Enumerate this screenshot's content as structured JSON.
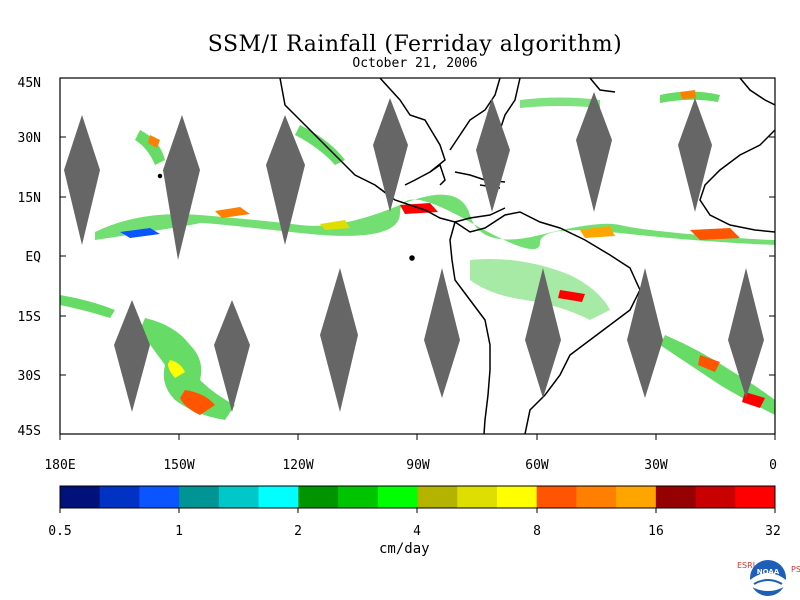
{
  "title": "SSM/I Rainfall (Ferriday algorithm)",
  "subtitle": "October 21, 2006",
  "map": {
    "lat_labels": [
      "45N",
      "30N",
      "15N",
      "EQ",
      "15S",
      "30S",
      "45S"
    ],
    "lon_labels": [
      "180E",
      "150W",
      "120W",
      "90W",
      "60W",
      "30W",
      "0"
    ],
    "lon_range": [
      -180,
      0
    ],
    "lat_range": [
      -45,
      45
    ],
    "land_outline_color": "#000000",
    "swath_gap_color": "#666666"
  },
  "colorbar": {
    "colors": [
      "#00127a",
      "#0033c4",
      "#0a55ff",
      "#009595",
      "#00c8c8",
      "#00ffff",
      "#009500",
      "#00c400",
      "#00ff00",
      "#b3b300",
      "#dede00",
      "#ffff00",
      "#ff5500",
      "#ff7f00",
      "#ffa500",
      "#950000",
      "#c80000",
      "#ff0000"
    ],
    "tick_labels": [
      "0.5",
      "1",
      "2",
      "4",
      "8",
      "16",
      "32"
    ],
    "unit": "cm/day"
  },
  "logo": {
    "left_letters": "ESRL",
    "right_letters": "PSD",
    "center_text": "NOAA"
  }
}
